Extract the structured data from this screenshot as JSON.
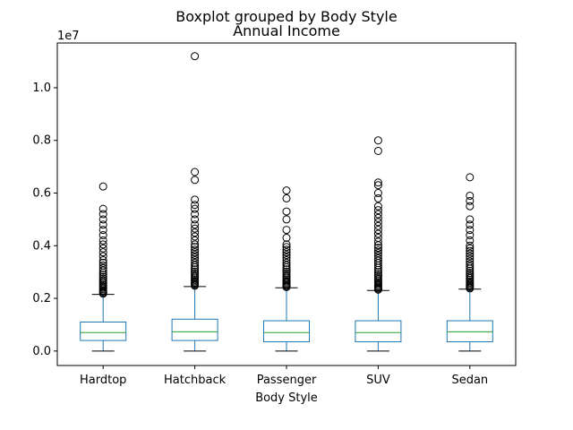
{
  "chart_data": {
    "type": "boxplot",
    "suptitle": "Boxplot grouped by Body Style",
    "title": "Annual Income",
    "xlabel": "Body Style",
    "ylabel": "",
    "y_offset_label": "1e7",
    "ylim": [
      -0.055,
      1.17
    ],
    "yticks": [
      0.0,
      0.2,
      0.4,
      0.6,
      0.8,
      1.0
    ],
    "ytick_labels": [
      "0.0",
      "0.2",
      "0.4",
      "0.6",
      "0.8",
      "1.0"
    ],
    "grid": false,
    "colors": {
      "box": "#1f77b4",
      "median": "#2ca02c",
      "whisker": "#1f77b4",
      "cap": "#000000",
      "flier": "#000000"
    },
    "categories": [
      "Hardtop",
      "Hatchback",
      "Passenger",
      "SUV",
      "Sedan"
    ],
    "boxes": [
      {
        "category": "Hardtop",
        "whislo": 0.0,
        "q1": 0.04,
        "med": 0.07,
        "q3": 0.11,
        "whishi": 0.215,
        "fliers": [
          0.218,
          0.222,
          0.226,
          0.23,
          0.235,
          0.24,
          0.245,
          0.25,
          0.256,
          0.262,
          0.268,
          0.275,
          0.282,
          0.29,
          0.298,
          0.306,
          0.315,
          0.325,
          0.335,
          0.345,
          0.36,
          0.375,
          0.39,
          0.405,
          0.42,
          0.44,
          0.46,
          0.48,
          0.5,
          0.52,
          0.54,
          0.625
        ]
      },
      {
        "category": "Hatchback",
        "whislo": 0.0,
        "q1": 0.04,
        "med": 0.073,
        "q3": 0.121,
        "whishi": 0.245,
        "fliers": [
          0.248,
          0.252,
          0.256,
          0.26,
          0.265,
          0.27,
          0.276,
          0.282,
          0.288,
          0.295,
          0.302,
          0.31,
          0.318,
          0.326,
          0.335,
          0.345,
          0.355,
          0.365,
          0.375,
          0.385,
          0.395,
          0.405,
          0.42,
          0.435,
          0.45,
          0.465,
          0.48,
          0.5,
          0.52,
          0.54,
          0.555,
          0.575,
          0.65,
          0.68,
          1.12
        ]
      },
      {
        "category": "Passenger",
        "whislo": 0.0,
        "q1": 0.035,
        "med": 0.07,
        "q3": 0.115,
        "whishi": 0.24,
        "fliers": [
          0.243,
          0.247,
          0.251,
          0.255,
          0.26,
          0.265,
          0.27,
          0.276,
          0.282,
          0.288,
          0.295,
          0.302,
          0.31,
          0.318,
          0.326,
          0.335,
          0.345,
          0.355,
          0.365,
          0.375,
          0.385,
          0.395,
          0.405,
          0.43,
          0.46,
          0.5,
          0.53,
          0.58,
          0.61
        ]
      },
      {
        "category": "SUV",
        "whislo": 0.0,
        "q1": 0.035,
        "med": 0.07,
        "q3": 0.115,
        "whishi": 0.23,
        "fliers": [
          0.233,
          0.237,
          0.241,
          0.245,
          0.25,
          0.255,
          0.26,
          0.266,
          0.272,
          0.278,
          0.285,
          0.292,
          0.3,
          0.308,
          0.316,
          0.325,
          0.334,
          0.343,
          0.352,
          0.362,
          0.372,
          0.382,
          0.392,
          0.402,
          0.415,
          0.43,
          0.445,
          0.46,
          0.475,
          0.49,
          0.505,
          0.52,
          0.535,
          0.55,
          0.58,
          0.6,
          0.63,
          0.64,
          0.76,
          0.8
        ]
      },
      {
        "category": "Sedan",
        "whislo": 0.0,
        "q1": 0.035,
        "med": 0.073,
        "q3": 0.115,
        "whishi": 0.235,
        "fliers": [
          0.238,
          0.242,
          0.246,
          0.25,
          0.255,
          0.26,
          0.265,
          0.271,
          0.277,
          0.283,
          0.29,
          0.297,
          0.305,
          0.313,
          0.321,
          0.33,
          0.34,
          0.35,
          0.36,
          0.37,
          0.38,
          0.39,
          0.4,
          0.42,
          0.44,
          0.46,
          0.48,
          0.5,
          0.55,
          0.57,
          0.59,
          0.66
        ]
      }
    ]
  }
}
